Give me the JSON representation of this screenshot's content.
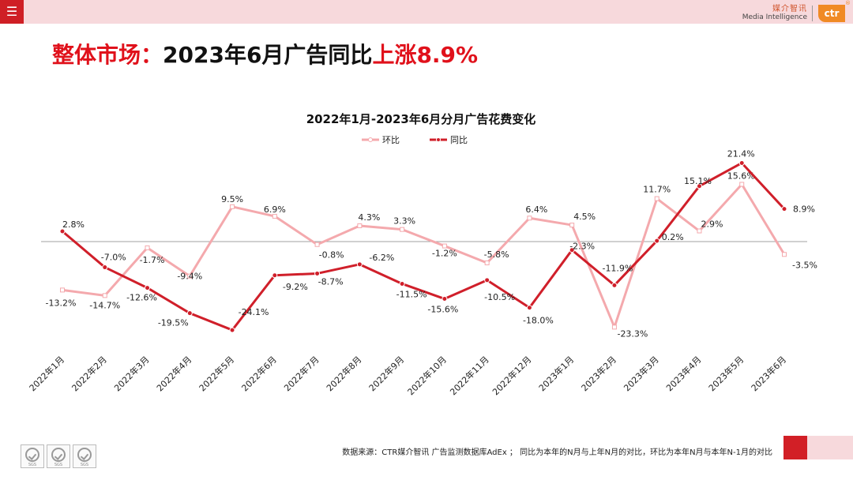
{
  "header": {
    "menu_icon": "menu-icon",
    "logo_cn": "媒介智讯",
    "logo_en": "Media Intelligence",
    "logo_mark": "ctr",
    "logo_reg": "®"
  },
  "headline": {
    "part1": "整体市场：",
    "part2": "2023年6月广告同比",
    "part3": "上涨8.9%"
  },
  "colors": {
    "accent": "#e0111b",
    "brand_red": "#cf1f25",
    "series_mom": "#f4a9ad",
    "series_yoy": "#d01f2a",
    "topbar": "#f7d9dc"
  },
  "chart_data": {
    "type": "line",
    "title": "2022年1月-2023年6月分月广告花费变化",
    "categories": [
      "2022年1月",
      "2022年2月",
      "2022年3月",
      "2022年4月",
      "2022年5月",
      "2022年6月",
      "2022年7月",
      "2022年8月",
      "2022年9月",
      "2022年10月",
      "2022年11月",
      "2022年12月",
      "2023年1月",
      "2023年2月",
      "2023年3月",
      "2023年4月",
      "2023年5月",
      "2023年6月"
    ],
    "series": [
      {
        "name": "环比",
        "values": [
          -13.2,
          -14.7,
          -1.7,
          -9.4,
          9.5,
          6.9,
          -0.8,
          4.3,
          3.3,
          -1.2,
          -5.8,
          6.4,
          4.5,
          -23.3,
          11.7,
          2.9,
          15.6,
          -3.5
        ],
        "labels": [
          "-13.2%",
          "-14.7%",
          "-1.7%",
          "-9.4%",
          "9.5%",
          "6.9%",
          "-0.8%",
          "4.3%",
          "3.3%",
          "-1.2%",
          "-5.8%",
          "6.4%",
          "4.5%",
          "-23.3%",
          "11.7%",
          "2.9%",
          "15.6%",
          "-3.5%"
        ]
      },
      {
        "name": "同比",
        "values": [
          2.8,
          -7.0,
          -12.6,
          -19.5,
          -24.1,
          -9.2,
          -8.7,
          -6.2,
          -11.5,
          -15.6,
          -10.5,
          -18.0,
          -2.3,
          -11.9,
          0.2,
          15.1,
          21.4,
          8.9
        ],
        "labels": [
          "2.8%",
          "-7.0%",
          "-12.6%",
          "-19.5%",
          "-24.1%",
          "-9.2%",
          "-8.7%",
          "-6.2%",
          "-11.5%",
          "-15.6%",
          "-10.5%",
          "-18.0%",
          "-2.3%",
          "-11.9%",
          "0.2%",
          "15.1%",
          "21.4%",
          "8.9%"
        ]
      }
    ],
    "legend_position": "top",
    "grid": false
  },
  "footer": {
    "source": "数据来源：CTR媒介智讯 广告监测数据库AdEx ；  同比为本年的N月与上年N月的对比，环比为本年N月与本年N-1月的对比",
    "cert_label": "SGS"
  }
}
